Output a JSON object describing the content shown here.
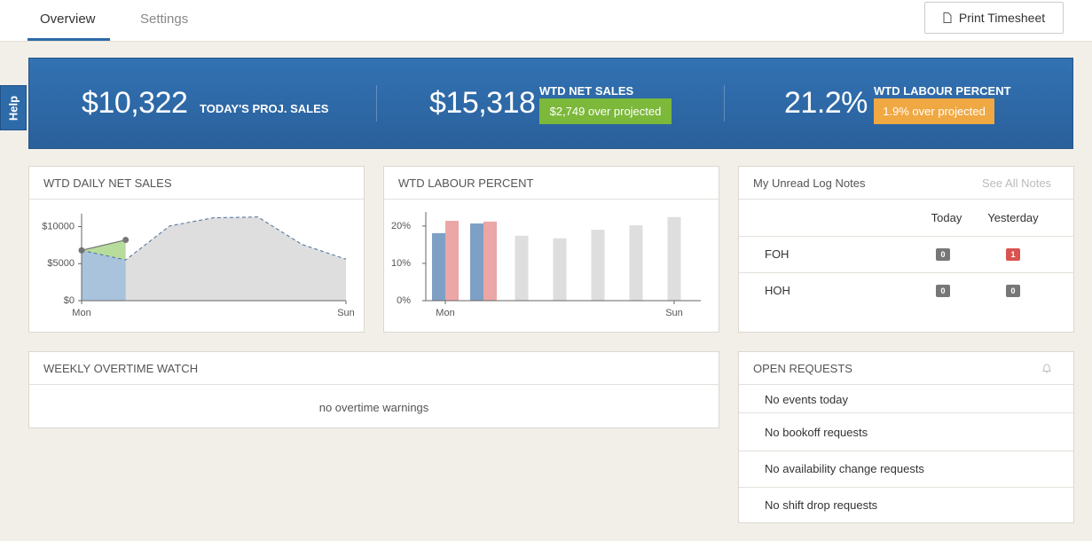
{
  "tabs": [
    "Overview",
    "Settings"
  ],
  "print_button": "Print Timesheet",
  "help": "Help",
  "kpis": [
    {
      "value": "$10,322",
      "label": "TODAY'S PROJ. SALES"
    },
    {
      "value": "$15,318",
      "label": "WTD NET SALES",
      "badge": "$2,749 over projected"
    },
    {
      "value": "21.2%",
      "label": "WTD LABOUR PERCENT",
      "badge": "1.9% over projected"
    }
  ],
  "chart_data": [
    {
      "type": "area",
      "title": "WTD DAILY NET SALES",
      "categories": [
        "Mon",
        null,
        null,
        null,
        null,
        null,
        "Sun"
      ],
      "series": [
        {
          "color": "#a9c3dd",
          "values": [
            6800,
            8200,
            null,
            null,
            null,
            null,
            null
          ]
        },
        {
          "color": "#dedede",
          "values": [
            6800,
            5500,
            10100,
            11200,
            11300,
            7600,
            5600
          ]
        }
      ],
      "highlight_color": "#b7dc9b",
      "ylim": [
        0,
        11500
      ],
      "yticks": [
        {
          "value": 0,
          "label": "$0"
        },
        {
          "value": 5000,
          "label": "$5000"
        },
        {
          "value": 10000,
          "label": "$10000"
        }
      ]
    },
    {
      "type": "bar",
      "title": "WTD LABOUR PERCENT",
      "categories": [
        "Mon",
        null,
        null,
        null,
        null,
        null,
        "Sun"
      ],
      "series": [
        {
          "color": "#7fa0c5",
          "values": [
            18.1,
            20.7,
            null,
            null,
            null,
            null,
            null
          ]
        },
        {
          "color": "#eba6a6",
          "values": [
            21.4,
            21.2,
            null,
            null,
            null,
            null,
            null
          ]
        },
        {
          "color": "#dedede",
          "values": [
            null,
            null,
            17.4,
            16.7,
            19,
            20.2,
            22.4
          ]
        }
      ],
      "ylim": [
        0,
        23.3
      ],
      "yticks": [
        {
          "value": 0,
          "label": "0%"
        },
        {
          "value": 10,
          "label": "10%"
        },
        {
          "value": 20,
          "label": "20%"
        }
      ]
    }
  ],
  "log_notes": {
    "title": "My Unread Log Notes",
    "link": "See All Notes",
    "columns": [
      "Today",
      "Yesterday"
    ],
    "rows": [
      {
        "label": "FOH",
        "values": [
          0,
          1
        ]
      },
      {
        "label": "HOH",
        "values": [
          0,
          0
        ]
      }
    ]
  },
  "overtime": {
    "title": "WEEKLY OVERTIME WATCH",
    "message": "no overtime warnings"
  },
  "requests": {
    "title": "OPEN REQUESTS",
    "items": [
      "No events today",
      "No bookoff requests",
      "No availability change requests",
      "No shift drop requests"
    ]
  }
}
